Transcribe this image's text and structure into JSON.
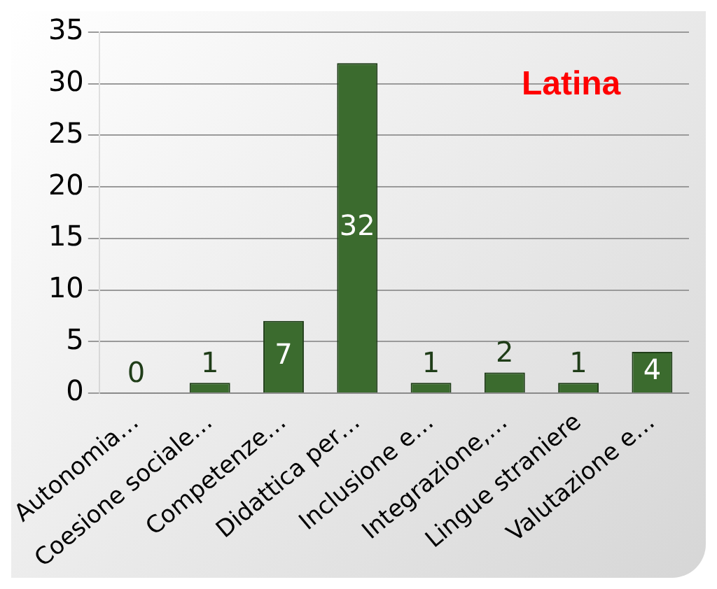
{
  "chart_data": {
    "type": "bar",
    "title": "Latina",
    "categories": [
      "Autonomia…",
      "Coesione sociale…",
      "Competenze…",
      "Didattica per…",
      "Inclusione e…",
      "Integrazione,…",
      "Lingue straniere",
      "Valutazione e…"
    ],
    "values": [
      0,
      1,
      7,
      32,
      1,
      2,
      1,
      4
    ],
    "color": "#3b6b2e",
    "ylim": [
      0,
      35
    ],
    "yticks": [
      0,
      5,
      10,
      15,
      20,
      25,
      30,
      35
    ],
    "grid": "y",
    "data_labels": true,
    "legend": false
  }
}
